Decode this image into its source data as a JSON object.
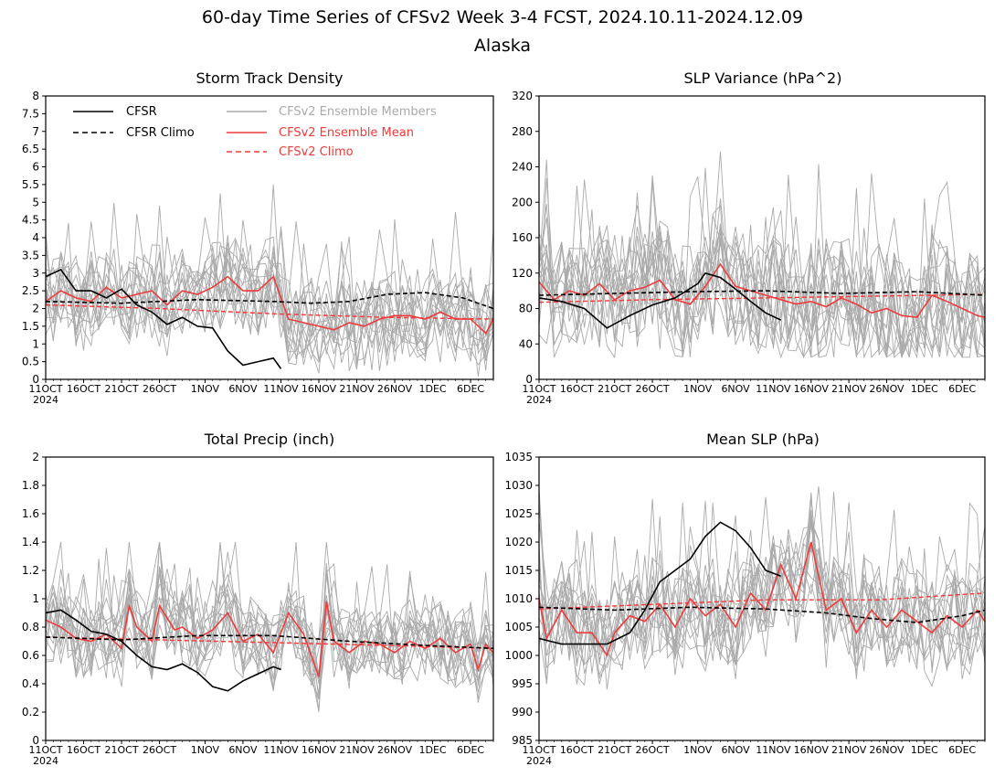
{
  "figure": {
    "title": "60-day Time Series of CFSv2 Week 3-4 FCST, 2024.10.11-2024.12.09",
    "subtitle": "Alaska"
  },
  "colors": {
    "cfsr": "#000000",
    "members": "#aaaaaa",
    "ens_mean": "#ee3b3b",
    "axes": "#000000"
  },
  "x_axis": {
    "ticks": [
      "11OCT",
      "16OCT",
      "21OCT",
      "26OCT",
      "1NOV",
      "6NOV",
      "11NOV",
      "16NOV",
      "21NOV",
      "26NOV",
      "1DEC",
      "6DEC"
    ],
    "tick_days": [
      0,
      5,
      10,
      15,
      21,
      26,
      31,
      36,
      41,
      46,
      51,
      56
    ],
    "year_label": "2024",
    "days": 60
  },
  "legend": {
    "cfsr": "CFSR",
    "cfsr_climo": "CFSR Climo",
    "members": "CFSv2 Ensemble Members",
    "ens_mean": "CFSv2 Ensemble Mean",
    "cfsv2_climo": "CFSv2 Climo"
  },
  "chart_data": [
    {
      "id": "storm",
      "type": "line",
      "title": "Storm Track Density",
      "ylim": [
        0,
        8
      ],
      "yticks": [
        0,
        0.5,
        1,
        1.5,
        2,
        2.5,
        3,
        3.5,
        4,
        4.5,
        5,
        5.5,
        6,
        6.5,
        7,
        7.5,
        8
      ],
      "cfsr_x": [
        0,
        2,
        4,
        6,
        8,
        10,
        12,
        14,
        16,
        18,
        20,
        22,
        24,
        26,
        28,
        30,
        31
      ],
      "cfsr": [
        2.9,
        3.1,
        2.5,
        2.5,
        2.3,
        2.55,
        2.1,
        1.9,
        1.55,
        1.75,
        1.5,
        1.45,
        0.8,
        0.4,
        0.5,
        0.6,
        0.3
      ],
      "cfsr_climo_x": [
        0,
        10,
        20,
        30,
        35,
        40,
        45,
        50,
        55,
        59
      ],
      "cfsr_climo": [
        2.2,
        2.15,
        2.25,
        2.2,
        2.15,
        2.2,
        2.4,
        2.45,
        2.3,
        2.0
      ],
      "ens_mean_x": [
        0,
        2,
        4,
        6,
        8,
        10,
        12,
        14,
        16,
        18,
        20,
        22,
        24,
        26,
        28,
        30,
        32,
        34,
        36,
        38,
        40,
        42,
        44,
        46,
        48,
        50,
        52,
        54,
        56,
        58,
        59
      ],
      "ens_mean": [
        2.2,
        2.5,
        2.3,
        2.2,
        2.6,
        2.3,
        2.4,
        2.5,
        2.1,
        2.5,
        2.4,
        2.6,
        2.9,
        2.5,
        2.5,
        2.9,
        1.7,
        1.6,
        1.5,
        1.4,
        1.6,
        1.5,
        1.7,
        1.8,
        1.8,
        1.7,
        1.9,
        1.7,
        1.7,
        1.3,
        1.7
      ],
      "cfsv2_climo_x": [
        0,
        15,
        30,
        45,
        59
      ],
      "cfsv2_climo": [
        2.1,
        2.0,
        1.85,
        1.75,
        1.7
      ],
      "member_count": 16,
      "member_low": 0.0,
      "member_high": 5.5
    },
    {
      "id": "slpvar",
      "type": "line",
      "title": "SLP Variance (hPa^2)",
      "ylim": [
        0,
        320
      ],
      "yticks": [
        0,
        40,
        80,
        120,
        160,
        200,
        240,
        280,
        320
      ],
      "cfsr_x": [
        0,
        3,
        6,
        9,
        12,
        15,
        18,
        21,
        22,
        24,
        26,
        28,
        30,
        32
      ],
      "cfsr": [
        92,
        88,
        80,
        58,
        72,
        84,
        92,
        108,
        120,
        115,
        102,
        88,
        75,
        67
      ],
      "cfsr_climo_x": [
        0,
        10,
        20,
        30,
        40,
        50,
        59
      ],
      "cfsr_climo": [
        95,
        97,
        99,
        100,
        97,
        99,
        95
      ],
      "ens_mean_x": [
        0,
        2,
        4,
        6,
        8,
        10,
        12,
        14,
        16,
        18,
        20,
        22,
        24,
        26,
        28,
        30,
        32,
        34,
        36,
        38,
        40,
        42,
        44,
        46,
        48,
        50,
        52,
        54,
        56,
        58,
        59
      ],
      "ens_mean": [
        110,
        90,
        100,
        95,
        108,
        90,
        100,
        104,
        112,
        90,
        85,
        105,
        130,
        105,
        100,
        95,
        90,
        85,
        88,
        82,
        92,
        85,
        75,
        80,
        72,
        70,
        95,
        88,
        80,
        72,
        70
      ],
      "cfsv2_climo_x": [
        0,
        15,
        30,
        45,
        59
      ],
      "cfsv2_climo": [
        87,
        90,
        92,
        94,
        96
      ],
      "member_count": 16,
      "member_low": 25,
      "member_high": 320
    },
    {
      "id": "precip",
      "type": "line",
      "title": "Total Precip (inch)",
      "ylim": [
        0,
        2
      ],
      "yticks": [
        0,
        0.2,
        0.4,
        0.6,
        0.8,
        1,
        1.2,
        1.4,
        1.6,
        1.8,
        2
      ],
      "cfsr_x": [
        0,
        2,
        4,
        6,
        8,
        10,
        12,
        14,
        16,
        18,
        20,
        22,
        24,
        26,
        28,
        30,
        31
      ],
      "cfsr": [
        0.9,
        0.92,
        0.85,
        0.77,
        0.75,
        0.7,
        0.6,
        0.52,
        0.5,
        0.54,
        0.48,
        0.38,
        0.35,
        0.42,
        0.47,
        0.52,
        0.5
      ],
      "cfsr_climo_x": [
        0,
        10,
        20,
        30,
        40,
        50,
        59
      ],
      "cfsr_climo": [
        0.73,
        0.71,
        0.74,
        0.74,
        0.7,
        0.67,
        0.65
      ],
      "ens_mean_x": [
        0,
        2,
        4,
        6,
        8,
        10,
        11,
        12,
        14,
        15,
        17,
        18,
        20,
        22,
        24,
        26,
        28,
        30,
        32,
        34,
        36,
        37,
        38,
        40,
        42,
        44,
        46,
        48,
        50,
        52,
        54,
        56,
        57,
        58,
        59
      ],
      "ens_mean": [
        0.85,
        0.8,
        0.72,
        0.7,
        0.75,
        0.65,
        0.95,
        0.8,
        0.7,
        0.95,
        0.78,
        0.8,
        0.72,
        0.78,
        0.9,
        0.7,
        0.75,
        0.62,
        0.9,
        0.75,
        0.45,
        0.98,
        0.7,
        0.62,
        0.7,
        0.68,
        0.62,
        0.7,
        0.65,
        0.72,
        0.62,
        0.68,
        0.5,
        0.68,
        0.62
      ],
      "cfsv2_climo_x": [
        0,
        15,
        30,
        45,
        59
      ],
      "cfsv2_climo": [
        0.73,
        0.71,
        0.69,
        0.67,
        0.65
      ],
      "member_count": 16,
      "member_low": 0.2,
      "member_high": 1.4
    },
    {
      "id": "meanslp",
      "type": "line",
      "title": "Mean SLP (hPa)",
      "ylim": [
        985,
        1035
      ],
      "yticks": [
        985,
        990,
        995,
        1000,
        1005,
        1010,
        1015,
        1020,
        1025,
        1030,
        1035
      ],
      "cfsr_x": [
        0,
        3,
        6,
        9,
        12,
        14,
        16,
        18,
        20,
        22,
        24,
        26,
        28,
        29,
        30,
        32
      ],
      "cfsr": [
        1003,
        1002,
        1002,
        1002,
        1004,
        1008,
        1013,
        1015,
        1017,
        1021,
        1023.5,
        1022,
        1019,
        1017,
        1015,
        1014
      ],
      "cfsr_climo_x": [
        0,
        10,
        20,
        30,
        38,
        44,
        50,
        56,
        59
      ],
      "cfsr_climo": [
        1008.5,
        1008,
        1008.5,
        1008.2,
        1007.5,
        1006.5,
        1005.8,
        1007,
        1008
      ],
      "ens_mean_x": [
        0,
        1,
        3,
        5,
        7,
        9,
        10,
        12,
        14,
        16,
        18,
        20,
        22,
        24,
        26,
        28,
        30,
        32,
        34,
        36,
        38,
        40,
        42,
        44,
        46,
        48,
        50,
        52,
        54,
        56,
        58,
        59
      ],
      "ens_mean": [
        1010,
        1003,
        1008,
        1004,
        1004,
        1000,
        1004,
        1007,
        1006,
        1009,
        1005,
        1010,
        1007,
        1009,
        1005,
        1011,
        1008,
        1016,
        1010,
        1020,
        1008,
        1010,
        1004,
        1008,
        1005,
        1008,
        1006,
        1004,
        1007,
        1005,
        1008,
        1006
      ],
      "cfsv2_climo_x": [
        0,
        15,
        30,
        45,
        59
      ],
      "cfsv2_climo": [
        1008.2,
        1009,
        1009.8,
        1009.8,
        1011
      ],
      "member_count": 16,
      "member_low": 994,
      "member_high": 1032
    }
  ]
}
